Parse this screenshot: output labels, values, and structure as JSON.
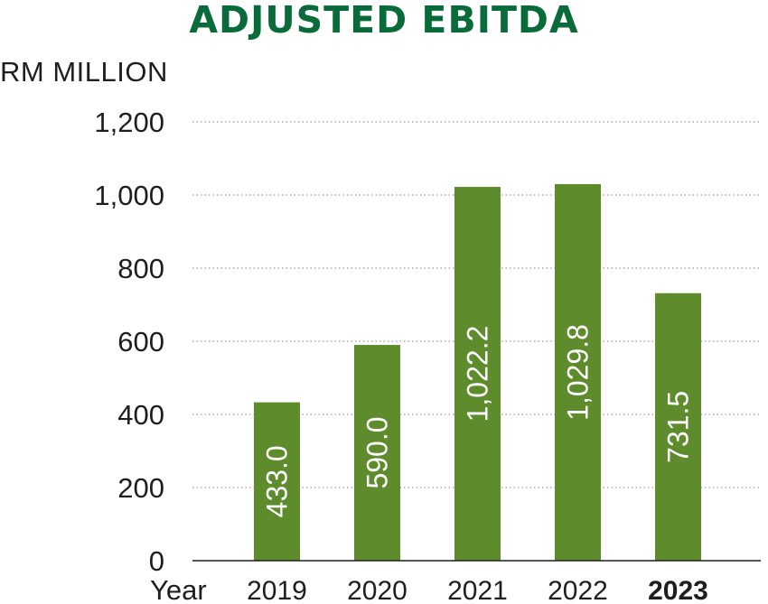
{
  "chart_data": {
    "type": "bar",
    "title": "ADJUSTED EBITDA",
    "ylabel": "RM MILLION",
    "xlabel": "Year",
    "categories": [
      "2019",
      "2020",
      "2021",
      "2022",
      "2023"
    ],
    "values": [
      433.0,
      590.0,
      1022.2,
      1029.8,
      731.5
    ],
    "value_labels": [
      "433.0",
      "590.0",
      "1,022.2",
      "1,029.8",
      "731.5"
    ],
    "ylim": [
      0,
      1200
    ],
    "yticks": [
      0,
      200,
      400,
      600,
      800,
      1000,
      1200
    ],
    "ytick_labels": [
      "0",
      "200",
      "400",
      "600",
      "800",
      "1,000",
      "1,200"
    ],
    "grid": true,
    "highlight_category": "2023",
    "colors": {
      "bar": "#5e8c2d",
      "title": "#0a6b3a",
      "text": "#1e1e1e",
      "grid": "#999999"
    }
  }
}
